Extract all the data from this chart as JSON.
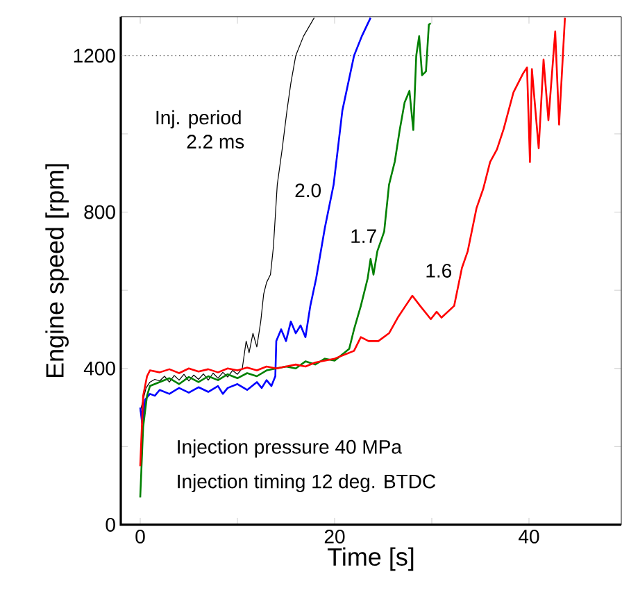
{
  "chart_data": {
    "type": "line",
    "xlabel": "Time     [s]",
    "ylabel": "Engine speed    [rpm]",
    "xlim": [
      -2,
      49.5
    ],
    "ylim": [
      0,
      1300
    ],
    "xticks": [
      0,
      {
        "value": 10,
        "label": null
      },
      20,
      {
        "value": 30,
        "label": null
      },
      40
    ],
    "yticks": [
      0,
      {
        "value": 200,
        "label": null
      },
      400,
      {
        "value": 600,
        "label": null
      },
      800,
      {
        "value": 1000,
        "label": null
      },
      1200
    ],
    "grid": false,
    "legend": false,
    "line_style": "solid",
    "ref_lines": [
      {
        "axis": "y",
        "value": 1200,
        "color": "#555555",
        "line_style": "dotted"
      }
    ],
    "series": [
      {
        "name": "2.2 ms",
        "color": "#000000",
        "x": [
          0,
          0.3,
          0.6,
          1,
          1.5,
          2,
          2.5,
          3,
          3.5,
          4,
          4.5,
          5,
          5.5,
          6,
          6.5,
          7,
          7.5,
          8,
          8.5,
          9,
          9.5,
          10,
          10.5,
          10.9,
          11.2,
          11.6,
          12,
          12.4,
          12.7,
          13,
          13.4,
          13.7,
          14.1,
          14.6,
          15.1,
          15.5,
          16,
          16.8,
          17.9
        ],
        "values": [
          290,
          320,
          350,
          365,
          372,
          368,
          380,
          365,
          382,
          370,
          385,
          368,
          383,
          372,
          386,
          370,
          388,
          375,
          390,
          378,
          395,
          385,
          400,
          470,
          440,
          490,
          455,
          520,
          590,
          620,
          640,
          710,
          870,
          960,
          1060,
          1130,
          1200,
          1250,
          1297
        ]
      },
      {
        "name": "2.0",
        "color": "#0000ff",
        "x": [
          0,
          0.2,
          0.5,
          1,
          1.5,
          2,
          3,
          4,
          5,
          6,
          7,
          8,
          8.5,
          9,
          10,
          11,
          12,
          12.5,
          13,
          13.5,
          13.9,
          14,
          14.5,
          15,
          15.5,
          16,
          16.5,
          17,
          17.5,
          18.1,
          19,
          19.9,
          20.8,
          22,
          22.8,
          23.7
        ],
        "values": [
          300,
          260,
          320,
          335,
          330,
          345,
          335,
          350,
          338,
          352,
          340,
          355,
          335,
          350,
          360,
          345,
          365,
          350,
          370,
          355,
          380,
          470,
          500,
          470,
          520,
          490,
          510,
          480,
          560,
          630,
          760,
          870,
          1060,
          1200,
          1250,
          1297
        ]
      },
      {
        "name": "1.7",
        "color": "#008000",
        "x": [
          0,
          0.3,
          0.7,
          1,
          2,
          3,
          4,
          5,
          6,
          7,
          8,
          9,
          10,
          11,
          12,
          13,
          14,
          15,
          16,
          17,
          18,
          19,
          20,
          21,
          21.5,
          22,
          22.7,
          23.4,
          23.7,
          24,
          24.4,
          25.1,
          25.6,
          26.2,
          26.7,
          27.2,
          27.7,
          28.1,
          28.4,
          28.7,
          29,
          29.4,
          29.7,
          29.9
        ],
        "values": [
          70,
          250,
          330,
          355,
          365,
          375,
          360,
          378,
          365,
          380,
          370,
          385,
          375,
          388,
          380,
          395,
          400,
          405,
          400,
          418,
          410,
          425,
          420,
          440,
          450,
          500,
          560,
          630,
          680,
          640,
          700,
          750,
          870,
          930,
          1010,
          1080,
          1110,
          1010,
          1200,
          1250,
          1150,
          1160,
          1280,
          1283
        ]
      },
      {
        "name": "1.6",
        "color": "#ff0000",
        "x": [
          0,
          0.3,
          0.7,
          1,
          2,
          3,
          4,
          5,
          6,
          7,
          8,
          9,
          10,
          11,
          12,
          13,
          14,
          15,
          16,
          17,
          18,
          19,
          20,
          21,
          22,
          22.7,
          23.5,
          24.5,
          25.6,
          26.5,
          27.3,
          28,
          28.8,
          29.9,
          30.5,
          31,
          32.3,
          33.1,
          33.7,
          34.6,
          35.3,
          36,
          36.7,
          37.4,
          38.4,
          39.4,
          39.8,
          40.1,
          40.3,
          41,
          41.5,
          42,
          42.7,
          43.1,
          43.7
        ],
        "values": [
          150,
          330,
          380,
          395,
          390,
          398,
          388,
          400,
          392,
          398,
          390,
          400,
          395,
          402,
          395,
          405,
          400,
          405,
          410,
          405,
          415,
          420,
          425,
          435,
          445,
          480,
          470,
          470,
          490,
          530,
          560,
          586,
          560,
          526,
          545,
          530,
          560,
          657,
          700,
          810,
          860,
          928,
          960,
          1013,
          1106,
          1155,
          1170,
          928,
          1166,
          963,
          1190,
          1035,
          1262,
          1024,
          1297
        ]
      }
    ],
    "annotations": [
      "Inj. period",
      "Injection pressure 40 MPa",
      "Injection timing      12 deg. BTDC"
    ]
  }
}
